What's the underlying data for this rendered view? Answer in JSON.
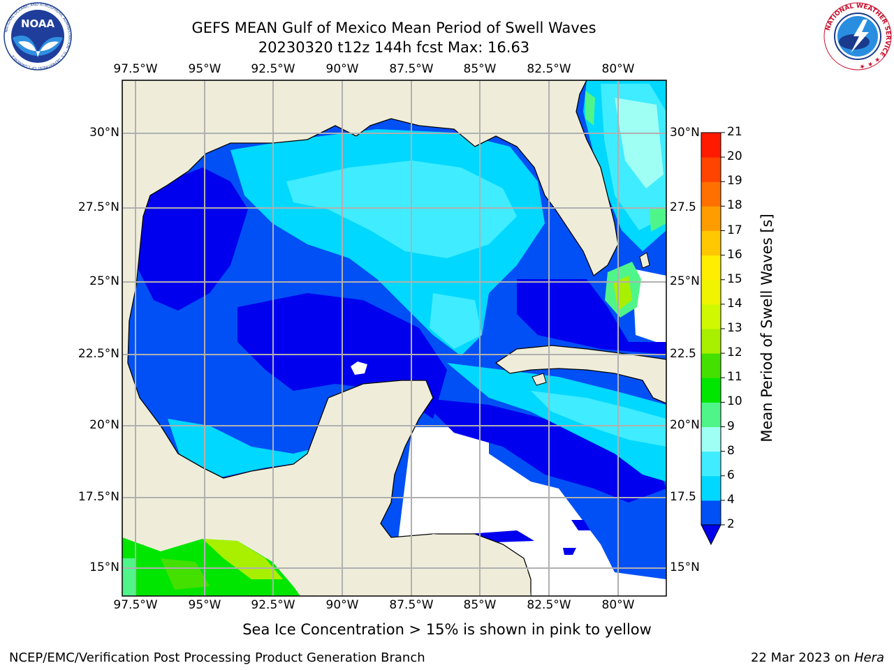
{
  "header": {
    "title_line1": "GEFS MEAN Gulf of Mexico Mean Period of Swell Waves",
    "title_line2": "20230320 t12z 144h fcst   Max: 16.63"
  },
  "logos": {
    "noaa_text": "NOAA",
    "noaa_ring_text": "NATIONAL OCEANIC AND ATMOSPHERIC ADMINISTRATION · U.S. DEPARTMENT OF COMMERCE ·",
    "nws_ring_text": "NATIONAL WEATHER SERVICE ★ ★ ★"
  },
  "map": {
    "lon_ticks": [
      "97.5°W",
      "95°W",
      "92.5°W",
      "90°W",
      "87.5°W",
      "85°W",
      "82.5°W",
      "80°W"
    ],
    "lat_ticks_left": [
      "30°N",
      "27.5°N",
      "25°N",
      "22.5°N",
      "20°N",
      "17.5°N",
      "15°N"
    ],
    "lat_ticks_right": [
      "30°N",
      "27.5",
      "25°N",
      "22.5",
      "20°N",
      "17.5",
      "15°N"
    ],
    "extent": {
      "lon_min": -98,
      "lon_max": -78.2,
      "lat_min": 14.0,
      "lat_max": 31.8
    },
    "colors": {
      "land": "#efedda",
      "no_data": "#ffffff",
      "grid": "#b0b0b0",
      "coast": "#000000"
    }
  },
  "colorbar": {
    "label": "Mean Period of Swell Waves [s]",
    "ticks": [
      "2",
      "4",
      "6",
      "8",
      "9",
      "10",
      "11",
      "12",
      "13",
      "14",
      "15",
      "16",
      "17",
      "18",
      "19",
      "20",
      "21"
    ],
    "colors": [
      "#0050f5",
      "#00d8ff",
      "#40ecff",
      "#a0fff4",
      "#50f58a",
      "#00e600",
      "#44e000",
      "#a8f000",
      "#d0f800",
      "#f0f400",
      "#ffee00",
      "#ffc800",
      "#ff9d00",
      "#ff7000",
      "#ff4400",
      "#ff1a00"
    ],
    "under_color": "#0000ee"
  },
  "footer": {
    "sea_ice_note": "Sea Ice Concentration > 15% is shown in pink to yellow",
    "credit": "NCEP/EMC/Verification Post Processing Product Generation Branch",
    "date": "22 Mar 2023 on",
    "machine": "Hera"
  }
}
